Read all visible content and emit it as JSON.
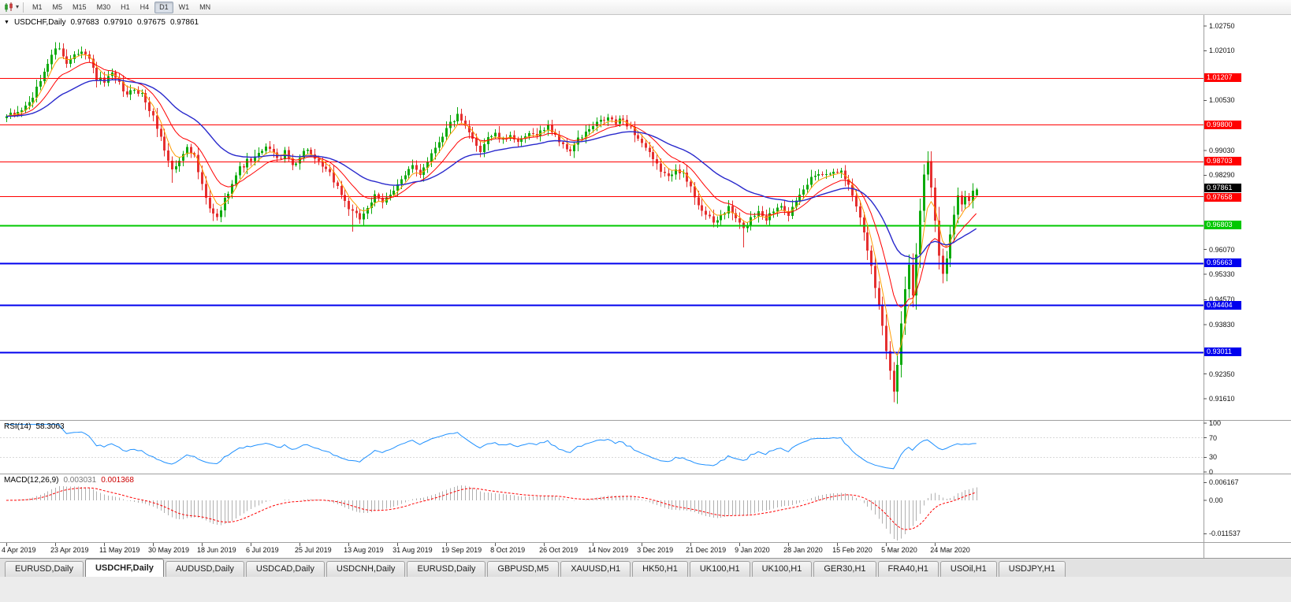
{
  "toolbar": {
    "timeframes": [
      "M1",
      "M5",
      "M15",
      "M30",
      "H1",
      "H4",
      "D1",
      "W1",
      "MN"
    ],
    "active_timeframe": "D1"
  },
  "chart": {
    "symbol_period": "USDCHF,Daily",
    "ohlc": {
      "open": "0.97683",
      "high": "0.97910",
      "low": "0.97675",
      "close": "0.97861"
    }
  },
  "rsi_panel": {
    "label": "RSI(14)",
    "value": "58.3063",
    "axis_ticks": [
      "100",
      "70",
      "30",
      "0"
    ],
    "levels": [
      70,
      30
    ],
    "line_color": "#1e90ff"
  },
  "macd_panel": {
    "label": "MACD(12,26,9)",
    "value_main": "0.003031",
    "value_signal": "0.001368",
    "axis_ticks": [
      "0.006167",
      "0.00",
      "-0.011537"
    ],
    "hist_color": "#b0b0b0",
    "signal_color": "#ff0000"
  },
  "tabs": {
    "items": [
      "EURUSD,Daily",
      "USDCHF,Daily",
      "AUDUSD,Daily",
      "USDCAD,Daily",
      "USDCNH,Daily",
      "EURUSD,Daily",
      "GBPUSD,M5",
      "XAUUSD,H1",
      "HK50,H1",
      "UK100,H1",
      "UK100,H1",
      "GER30,H1",
      "FRA40,H1",
      "USOil,H1",
      "USDJPY,H1"
    ],
    "active_index": 1
  },
  "chart_data": {
    "type": "candlestick",
    "symbol": "USDCHF",
    "period": "Daily",
    "bars": 259,
    "up_color": "#0caa0c",
    "down_color": "#e53030",
    "y_axis": {
      "min": 0.91,
      "max": 1.0308,
      "ticks": [
        "1.02750",
        "1.02010",
        "1.00530",
        "0.99030",
        "0.98290",
        "0.96070",
        "0.95330",
        "0.94570",
        "0.93830",
        "0.92350",
        "0.91610"
      ]
    },
    "x_labels": [
      "4 Apr 2019",
      "23 Apr 2019",
      "11 May 2019",
      "30 May 2019",
      "18 Jun 2019",
      "6 Jul 2019",
      "25 Jul 2019",
      "13 Aug 2019",
      "31 Aug 2019",
      "19 Sep 2019",
      "8 Oct 2019",
      "26 Oct 2019",
      "14 Nov 2019",
      "3 Dec 2019",
      "21 Dec 2019",
      "9 Jan 2020",
      "28 Jan 2020",
      "15 Feb 2020",
      "5 Mar 2020",
      "24 Mar 2020"
    ],
    "x_label_bar_interval": 13,
    "current_price": {
      "value": 0.97861,
      "label": "0.97861",
      "color": "#000000"
    },
    "horizontal_lines": [
      {
        "value": 1.01207,
        "label": "1.01207",
        "color": "#ff0000",
        "width": 1
      },
      {
        "value": 0.998,
        "label": "0.99800",
        "color": "#ff0000",
        "width": 1
      },
      {
        "value": 0.98703,
        "label": "0.98703",
        "color": "#ff0000",
        "width": 1
      },
      {
        "value": 0.97658,
        "label": "0.97658",
        "color": "#ff0000",
        "width": 1
      },
      {
        "value": 0.96803,
        "label": "0.96803",
        "color": "#00c800",
        "width": 2
      },
      {
        "value": 0.95663,
        "label": "0.95663",
        "color": "#0000ee",
        "width": 2
      },
      {
        "value": 0.94404,
        "label": "0.94404",
        "color": "#0000ee",
        "width": 2
      },
      {
        "value": 0.93011,
        "label": "0.93011",
        "color": "#0000ee",
        "width": 2
      }
    ],
    "moving_averages": [
      {
        "period": 5,
        "color": "#ff9c00",
        "width": 1
      },
      {
        "period": 13,
        "color": "#ff0000",
        "width": 1
      },
      {
        "period": 34,
        "color": "#2929cc",
        "width": 1.4
      }
    ],
    "last_bar": {
      "open": 0.97683,
      "high": 0.9791,
      "low": 0.97675,
      "close": 0.97861
    },
    "close_anchors": [
      [
        0,
        1.0005
      ],
      [
        2,
        1.001
      ],
      [
        4,
        1.0025
      ],
      [
        6,
        1.0045
      ],
      [
        8,
        1.0085
      ],
      [
        10,
        1.014
      ],
      [
        12,
        1.019
      ],
      [
        14,
        1.0215
      ],
      [
        16,
        1.016
      ],
      [
        18,
        1.0195
      ],
      [
        20,
        1.0205
      ],
      [
        22,
        1.0175
      ],
      [
        24,
        1.012
      ],
      [
        26,
        1.0105
      ],
      [
        28,
        1.013
      ],
      [
        30,
        1.01
      ],
      [
        32,
        1.0065
      ],
      [
        34,
        1.009
      ],
      [
        36,
        1.007
      ],
      [
        38,
        1.0025
      ],
      [
        40,
        0.9975
      ],
      [
        42,
        0.9905
      ],
      [
        44,
        0.9845
      ],
      [
        46,
        0.987
      ],
      [
        48,
        0.992
      ],
      [
        50,
        0.9885
      ],
      [
        52,
        0.9795
      ],
      [
        54,
        0.9725
      ],
      [
        56,
        0.97
      ],
      [
        58,
        0.9755
      ],
      [
        60,
        0.981
      ],
      [
        62,
        0.985
      ],
      [
        64,
        0.987
      ],
      [
        66,
        0.988
      ],
      [
        68,
        0.99
      ],
      [
        70,
        0.9915
      ],
      [
        72,
        0.9875
      ],
      [
        74,
        0.9895
      ],
      [
        76,
        0.986
      ],
      [
        78,
        0.9885
      ],
      [
        80,
        0.991
      ],
      [
        82,
        0.987
      ],
      [
        84,
        0.9855
      ],
      [
        86,
        0.983
      ],
      [
        88,
        0.9795
      ],
      [
        90,
        0.975
      ],
      [
        92,
        0.9715
      ],
      [
        94,
        0.97
      ],
      [
        96,
        0.9735
      ],
      [
        98,
        0.9765
      ],
      [
        100,
        0.9745
      ],
      [
        102,
        0.9775
      ],
      [
        104,
        0.9805
      ],
      [
        106,
        0.9825
      ],
      [
        108,
        0.9855
      ],
      [
        110,
        0.9835
      ],
      [
        112,
        0.9875
      ],
      [
        114,
        0.9915
      ],
      [
        116,
        0.995
      ],
      [
        118,
        0.9985
      ],
      [
        120,
        1.0005
      ],
      [
        122,
        0.997
      ],
      [
        124,
        0.9935
      ],
      [
        126,
        0.9905
      ],
      [
        128,
        0.9945
      ],
      [
        130,
        0.995
      ],
      [
        132,
        0.993
      ],
      [
        134,
        0.9955
      ],
      [
        136,
        0.992
      ],
      [
        138,
        0.9945
      ],
      [
        140,
        0.995
      ],
      [
        142,
        0.996
      ],
      [
        144,
        0.9975
      ],
      [
        146,
        0.995
      ],
      [
        148,
        0.9915
      ],
      [
        150,
        0.9905
      ],
      [
        152,
        0.9935
      ],
      [
        154,
        0.9955
      ],
      [
        156,
        0.9975
      ],
      [
        158,
        0.999
      ],
      [
        160,
        1.0
      ],
      [
        162,
        0.9985
      ],
      [
        164,
        0.9995
      ],
      [
        166,
        0.997
      ],
      [
        168,
        0.994
      ],
      [
        170,
        0.991
      ],
      [
        172,
        0.987
      ],
      [
        174,
        0.9845
      ],
      [
        176,
        0.982
      ],
      [
        178,
        0.9855
      ],
      [
        180,
        0.983
      ],
      [
        182,
        0.979
      ],
      [
        184,
        0.9745
      ],
      [
        186,
        0.971
      ],
      [
        188,
        0.9685
      ],
      [
        190,
        0.971
      ],
      [
        192,
        0.973
      ],
      [
        194,
        0.97
      ],
      [
        196,
        0.9665
      ],
      [
        198,
        0.97
      ],
      [
        200,
        0.9725
      ],
      [
        202,
        0.97
      ],
      [
        204,
        0.9725
      ],
      [
        206,
        0.9745
      ],
      [
        208,
        0.9715
      ],
      [
        210,
        0.9745
      ],
      [
        212,
        0.9785
      ],
      [
        214,
        0.982
      ],
      [
        216,
        0.984
      ],
      [
        218,
        0.983
      ],
      [
        220,
        0.9848
      ],
      [
        222,
        0.9838
      ],
      [
        224,
        0.98
      ],
      [
        226,
        0.974
      ],
      [
        228,
        0.966
      ],
      [
        230,
        0.956
      ],
      [
        232,
        0.944
      ],
      [
        234,
        0.931
      ],
      [
        236,
        0.919
      ],
      [
        237,
        0.926
      ],
      [
        238,
        0.939
      ],
      [
        239,
        0.949
      ],
      [
        240,
        0.9555
      ],
      [
        241,
        0.947
      ],
      [
        242,
        0.959
      ],
      [
        243,
        0.9715
      ],
      [
        244,
        0.983
      ],
      [
        245,
        0.988
      ],
      [
        246,
        0.98
      ],
      [
        247,
        0.969
      ],
      [
        248,
        0.959
      ],
      [
        249,
        0.953
      ],
      [
        250,
        0.9575
      ],
      [
        251,
        0.965
      ],
      [
        252,
        0.9715
      ],
      [
        253,
        0.9765
      ],
      [
        254,
        0.9745
      ],
      [
        255,
        0.977
      ],
      [
        256,
        0.9755
      ],
      [
        257,
        0.9775
      ],
      [
        258,
        0.9786
      ]
    ],
    "forced_extremes": [
      {
        "i": 14,
        "high": 1.0226
      },
      {
        "i": 44,
        "low": 0.9807
      },
      {
        "i": 55,
        "low": 0.9692
      },
      {
        "i": 92,
        "low": 0.966
      },
      {
        "i": 196,
        "low": 0.9613
      },
      {
        "i": 236,
        "low": 0.9161
      },
      {
        "i": 245,
        "high": 0.9901
      },
      {
        "i": 249,
        "low": 0.9517
      }
    ],
    "indicators": [
      {
        "name": "RSI",
        "period": 14,
        "value": 58.3063
      },
      {
        "name": "MACD",
        "params": "12,26,9",
        "main": 0.003031,
        "signal": 0.001368
      }
    ]
  }
}
